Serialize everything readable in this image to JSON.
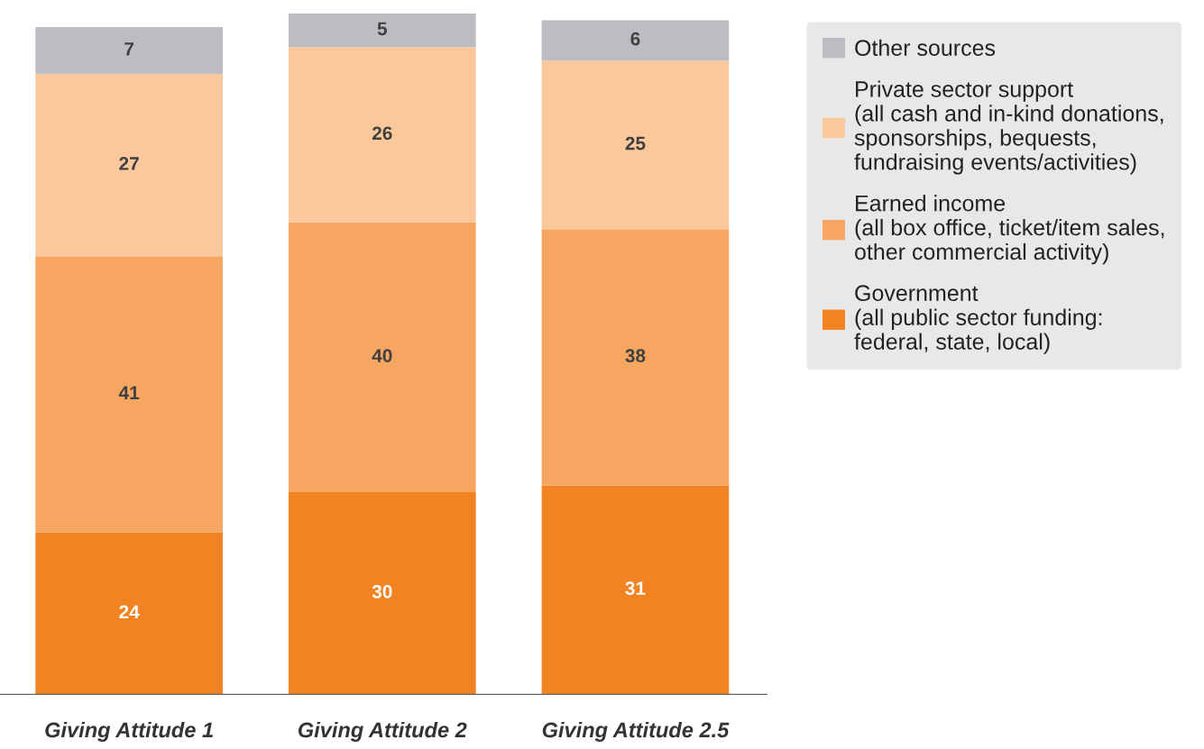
{
  "chart_data": {
    "type": "bar",
    "stacked": true,
    "data_labels": true,
    "legend": "right",
    "grid": false,
    "tick_labels": "x",
    "categories": [
      "Giving Attitude 1",
      "Giving Attitude 2",
      "Giving Attitude 2.5"
    ],
    "series": [
      {
        "name": "Government\n(all public sector funding:\nfederal, state, local)",
        "color": "#f28322",
        "values": [
          24,
          30,
          31
        ]
      },
      {
        "name": "Earned income\n(all box office, ticket/item sales,\nother commercial activity)",
        "color": "#f6a660",
        "values": [
          41,
          40,
          38
        ]
      },
      {
        "name": "Private sector support\n(all cash and in-kind donations,\nsponsorships, bequests,\nfundraising events/activities)",
        "color": "#fbc89c",
        "values": [
          27,
          26,
          25
        ]
      },
      {
        "name": "Other sources",
        "color": "#bcbdc0",
        "values": [
          7,
          5,
          6
        ]
      }
    ]
  }
}
